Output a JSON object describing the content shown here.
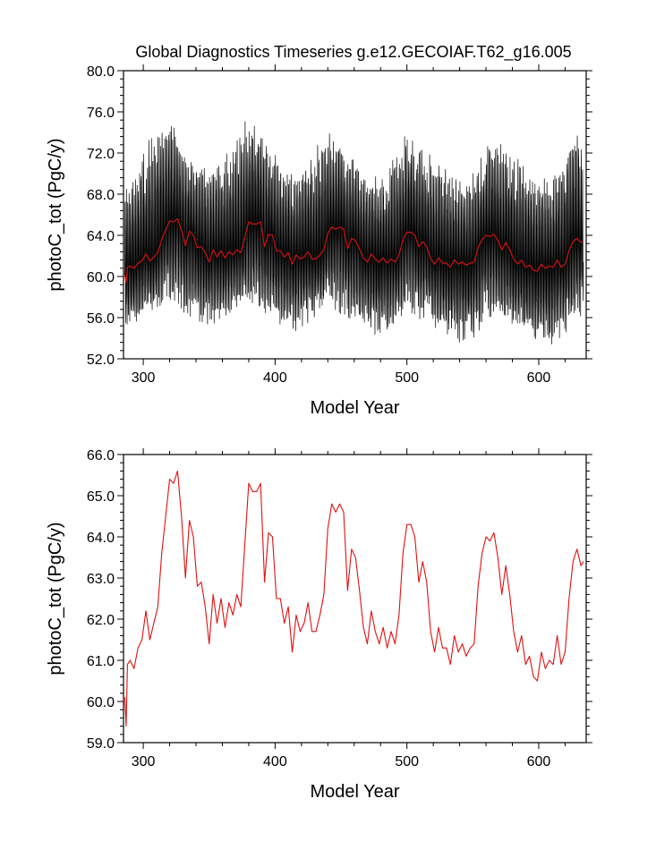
{
  "figure": {
    "title": "Global Diagnostics Timeseries g.e12.GECOIAF.T62_g16.005"
  },
  "colors": {
    "monthly_series": "#000000",
    "annual_series": "#e01010",
    "frame": "#000000"
  },
  "chart_data": [
    {
      "type": "line",
      "title": "Global Diagnostics Timeseries g.e12.GECOIAF.T62_g16.005",
      "xlabel": "Model Year",
      "ylabel": "photoC_tot (PgC/y)",
      "xlim": [
        285,
        636
      ],
      "ylim": [
        52.0,
        80.0
      ],
      "x_ticks": [
        300,
        400,
        500,
        600
      ],
      "x_tick_labels": [
        "300",
        "400",
        "500",
        "600"
      ],
      "y_ticks": [
        52,
        56,
        60,
        64,
        68,
        72,
        76,
        80
      ],
      "y_tick_labels": [
        "52.0",
        "56.0",
        "60.0",
        "64.0",
        "68.0",
        "72.0",
        "76.0",
        "80.0"
      ],
      "grid": false,
      "series": [
        {
          "style": "monthly black line",
          "x_start": 286,
          "x_end": 634,
          "min": 53.0,
          "max": 75.7,
          "range_at_x": [
            [
              290,
              55.0,
              69.5
            ],
            [
              310,
              57.0,
              75.0
            ],
            [
              320,
              57.5,
              75.7
            ],
            [
              335,
              56.0,
              71.5
            ],
            [
              355,
              55.0,
              70.5
            ],
            [
              380,
              57.5,
              75.7
            ],
            [
              395,
              56.0,
              73.0
            ],
            [
              415,
              54.5,
              70.0
            ],
            [
              440,
              57.0,
              74.5
            ],
            [
              455,
              56.0,
              72.5
            ],
            [
              480,
              54.0,
              69.5
            ],
            [
              500,
              56.5,
              74.0
            ],
            [
              520,
              55.0,
              71.5
            ],
            [
              545,
              53.2,
              69.0
            ],
            [
              565,
              56.0,
              73.5
            ],
            [
              585,
              54.5,
              71.5
            ],
            [
              610,
              53.2,
              69.0
            ],
            [
              625,
              55.0,
              74.3
            ],
            [
              634,
              56.5,
              73.0
            ]
          ]
        },
        {
          "style": "annual mean red line",
          "x": [
            286,
            287,
            288,
            290,
            293,
            296,
            299,
            302,
            305,
            308,
            311,
            314,
            317,
            320,
            323,
            326,
            329,
            332,
            335,
            338,
            341,
            344,
            347,
            350,
            353,
            356,
            359,
            362,
            365,
            368,
            371,
            374,
            377,
            380,
            383,
            386,
            389,
            392,
            395,
            398,
            401,
            404,
            407,
            410,
            413,
            416,
            419,
            422,
            425,
            428,
            431,
            434,
            437,
            440,
            443,
            446,
            449,
            452,
            455,
            458,
            461,
            464,
            467,
            470,
            473,
            476,
            479,
            482,
            485,
            488,
            491,
            494,
            497,
            500,
            503,
            506,
            509,
            512,
            515,
            518,
            521,
            524,
            527,
            530,
            533,
            536,
            539,
            542,
            545,
            548,
            551,
            554,
            557,
            560,
            563,
            566,
            569,
            572,
            575,
            578,
            581,
            584,
            587,
            590,
            593,
            596,
            599,
            602,
            605,
            608,
            611,
            614,
            617,
            620,
            623,
            626,
            629,
            632,
            634
          ],
          "values": [
            60.1,
            59.4,
            60.9,
            61.0,
            60.8,
            61.3,
            61.5,
            62.2,
            61.5,
            61.9,
            62.3,
            63.6,
            64.5,
            65.4,
            65.3,
            65.6,
            64.5,
            63.0,
            64.4,
            64.0,
            62.8,
            62.9,
            62.3,
            61.4,
            62.6,
            61.9,
            62.5,
            61.8,
            62.4,
            62.1,
            62.6,
            62.3,
            63.8,
            65.3,
            65.1,
            65.1,
            65.3,
            62.9,
            64.1,
            64.0,
            62.5,
            62.5,
            61.9,
            62.3,
            61.2,
            62.1,
            61.7,
            61.9,
            62.4,
            61.7,
            61.7,
            62.1,
            62.6,
            64.2,
            64.8,
            64.6,
            64.8,
            64.6,
            62.7,
            63.7,
            63.5,
            62.7,
            61.8,
            61.4,
            62.2,
            61.7,
            61.4,
            61.8,
            61.3,
            61.7,
            61.4,
            62.1,
            63.6,
            64.3,
            64.3,
            64.0,
            62.9,
            63.4,
            62.9,
            61.7,
            61.2,
            61.8,
            61.3,
            61.3,
            60.9,
            61.6,
            61.2,
            61.4,
            61.1,
            61.3,
            61.4,
            62.8,
            63.6,
            64.0,
            63.9,
            64.1,
            63.5,
            62.6,
            63.3,
            62.6,
            61.7,
            61.2,
            61.6,
            60.9,
            61.1,
            60.6,
            60.5,
            61.2,
            60.8,
            61.0,
            60.9,
            61.6,
            60.9,
            61.2,
            62.5,
            63.4,
            63.7,
            63.3,
            63.4
          ]
        }
      ]
    },
    {
      "type": "line",
      "title": "",
      "xlabel": "Model Year",
      "ylabel": "photoC_tot (PgC/y)",
      "xlim": [
        285,
        636
      ],
      "ylim": [
        59.0,
        66.0
      ],
      "x_ticks": [
        300,
        400,
        500,
        600
      ],
      "x_tick_labels": [
        "300",
        "400",
        "500",
        "600"
      ],
      "y_ticks": [
        59,
        60,
        61,
        62,
        63,
        64,
        65,
        66
      ],
      "y_tick_labels": [
        "59.0",
        "60.0",
        "61.0",
        "62.0",
        "63.0",
        "64.0",
        "65.0",
        "66.0"
      ],
      "grid": false,
      "series": [
        {
          "style": "annual mean red line",
          "x": [
            286,
            287,
            288,
            290,
            293,
            296,
            299,
            302,
            305,
            308,
            311,
            314,
            317,
            320,
            323,
            326,
            329,
            332,
            335,
            338,
            341,
            344,
            347,
            350,
            353,
            356,
            359,
            362,
            365,
            368,
            371,
            374,
            377,
            380,
            383,
            386,
            389,
            392,
            395,
            398,
            401,
            404,
            407,
            410,
            413,
            416,
            419,
            422,
            425,
            428,
            431,
            434,
            437,
            440,
            443,
            446,
            449,
            452,
            455,
            458,
            461,
            464,
            467,
            470,
            473,
            476,
            479,
            482,
            485,
            488,
            491,
            494,
            497,
            500,
            503,
            506,
            509,
            512,
            515,
            518,
            521,
            524,
            527,
            530,
            533,
            536,
            539,
            542,
            545,
            548,
            551,
            554,
            557,
            560,
            563,
            566,
            569,
            572,
            575,
            578,
            581,
            584,
            587,
            590,
            593,
            596,
            599,
            602,
            605,
            608,
            611,
            614,
            617,
            620,
            623,
            626,
            629,
            632,
            634
          ],
          "values": [
            60.1,
            59.4,
            60.9,
            61.0,
            60.8,
            61.3,
            61.5,
            62.2,
            61.5,
            61.9,
            62.3,
            63.6,
            64.5,
            65.4,
            65.3,
            65.6,
            64.5,
            63.0,
            64.4,
            64.0,
            62.8,
            62.9,
            62.3,
            61.4,
            62.6,
            61.9,
            62.5,
            61.8,
            62.4,
            62.1,
            62.6,
            62.3,
            63.8,
            65.3,
            65.1,
            65.1,
            65.3,
            62.9,
            64.1,
            64.0,
            62.5,
            62.5,
            61.9,
            62.3,
            61.2,
            62.1,
            61.7,
            61.9,
            62.4,
            61.7,
            61.7,
            62.1,
            62.6,
            64.2,
            64.8,
            64.6,
            64.8,
            64.6,
            62.7,
            63.7,
            63.5,
            62.7,
            61.8,
            61.4,
            62.2,
            61.7,
            61.4,
            61.8,
            61.3,
            61.7,
            61.4,
            62.1,
            63.6,
            64.3,
            64.3,
            64.0,
            62.9,
            63.4,
            62.9,
            61.7,
            61.2,
            61.8,
            61.3,
            61.3,
            60.9,
            61.6,
            61.2,
            61.4,
            61.1,
            61.3,
            61.4,
            62.8,
            63.6,
            64.0,
            63.9,
            64.1,
            63.5,
            62.6,
            63.3,
            62.6,
            61.7,
            61.2,
            61.6,
            60.9,
            61.1,
            60.6,
            60.5,
            61.2,
            60.8,
            61.0,
            60.9,
            61.6,
            60.9,
            61.2,
            62.5,
            63.4,
            63.7,
            63.3,
            63.4
          ]
        }
      ]
    }
  ]
}
